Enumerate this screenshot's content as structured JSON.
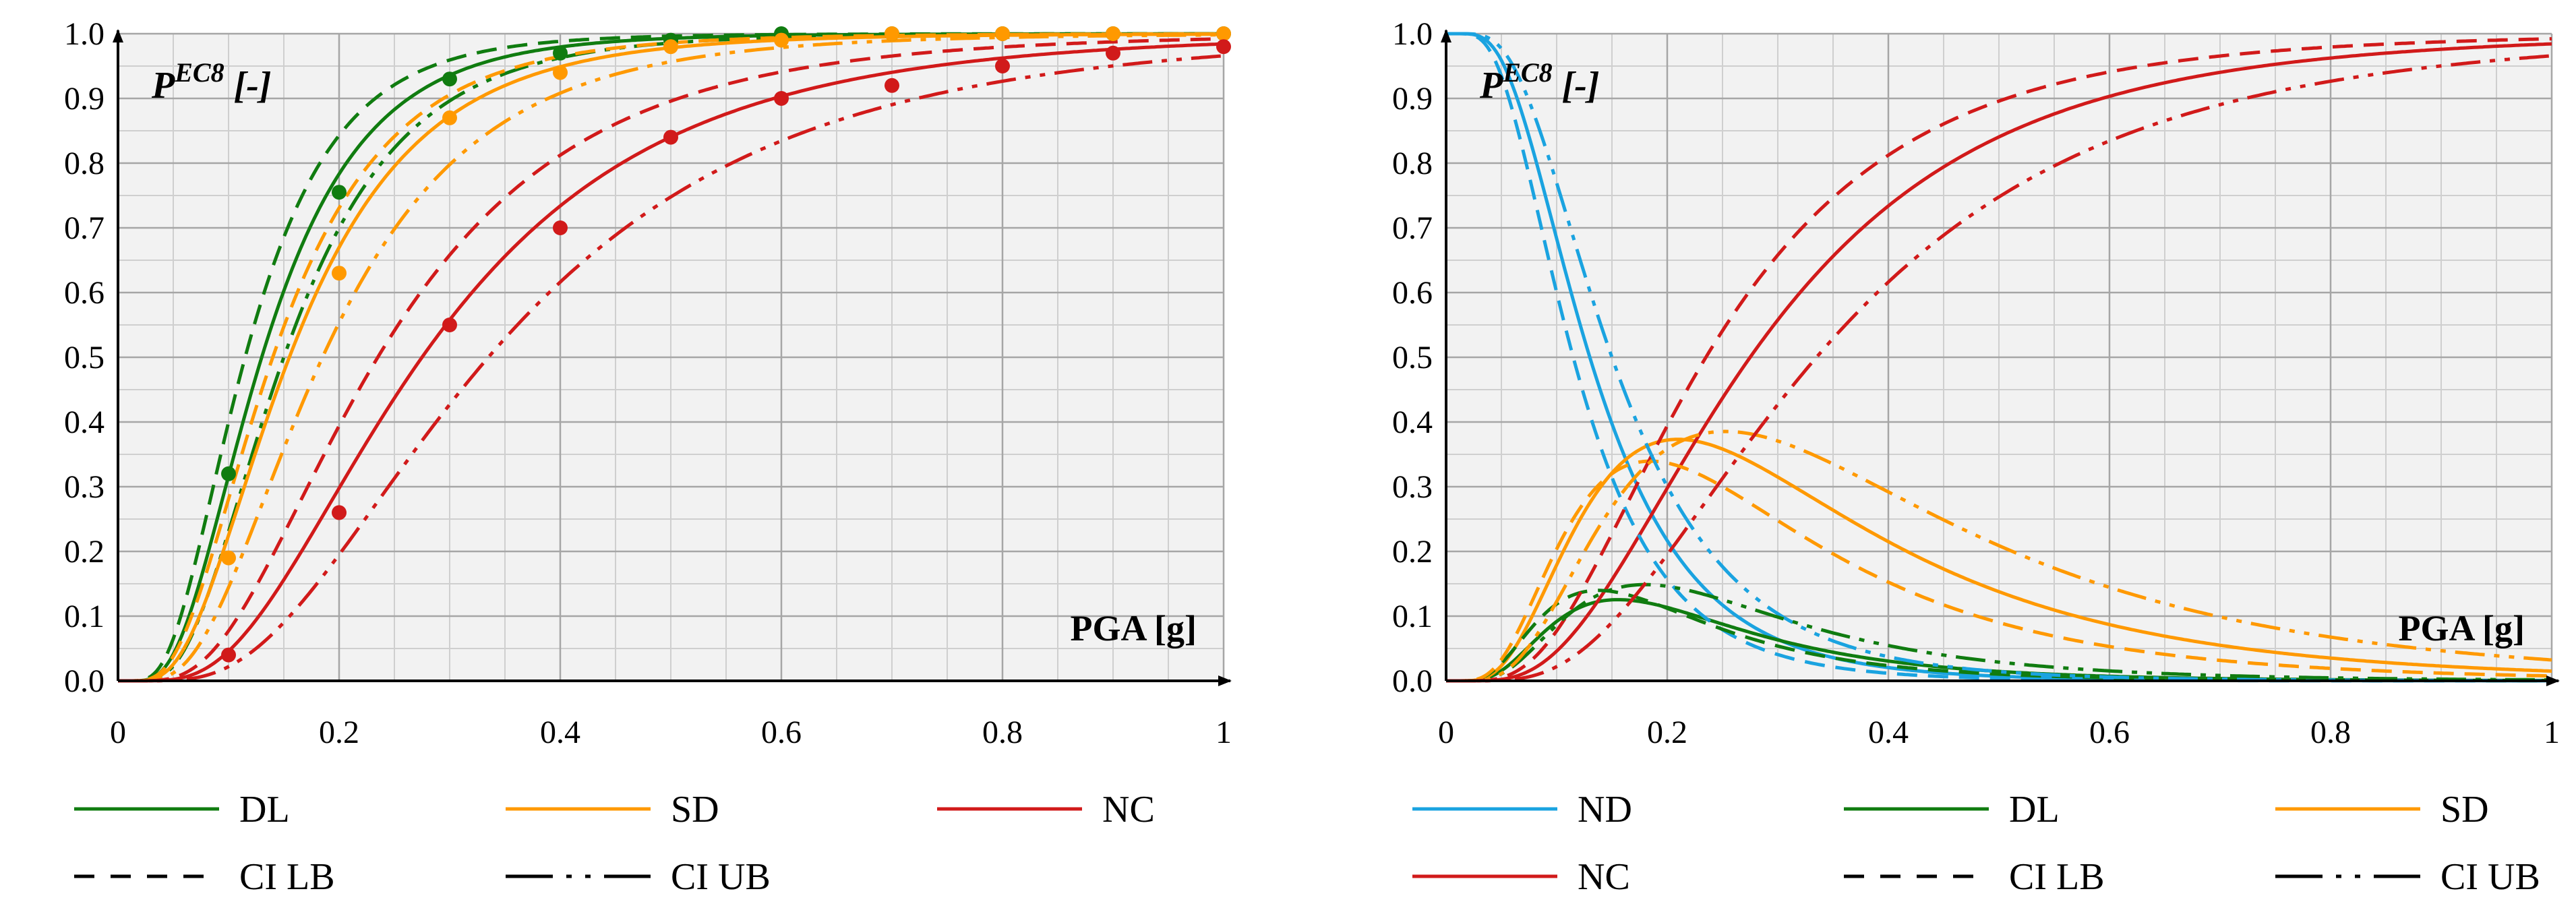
{
  "chart_data": [
    {
      "type": "line",
      "x_axis_label": "PGA [g]",
      "y_axis_label_main": "P",
      "y_axis_label_sup": "EC8",
      "y_axis_label_suffix": " [-]",
      "xlim": [
        0,
        1
      ],
      "ylim": [
        0,
        1
      ],
      "x_ticks": [
        "0",
        "0.2",
        "0.4",
        "0.6",
        "0.8",
        "1"
      ],
      "y_ticks": [
        "0.0",
        "0.1",
        "0.2",
        "0.3",
        "0.4",
        "0.5",
        "0.6",
        "0.7",
        "0.8",
        "0.9",
        "1.0"
      ],
      "grid": true,
      "kind": "fragility",
      "series": [
        {
          "name": "DL",
          "color": "#107c10",
          "median": 0.13,
          "beta": 0.55,
          "lb_median": 0.115,
          "ub_median": 0.15,
          "points": {
            "x": [
              0.1,
              0.2,
              0.3,
              0.4,
              0.5,
              0.6,
              0.7,
              0.8,
              0.9,
              1.0
            ],
            "y": [
              0.32,
              0.755,
              0.93,
              0.97,
              0.99,
              1.0,
              1.0,
              1.0,
              1.0,
              1.0
            ]
          }
        },
        {
          "name": "SD",
          "color": "#ff9900",
          "median": 0.155,
          "beta": 0.58,
          "lb_median": 0.14,
          "ub_median": 0.185,
          "points": {
            "x": [
              0.1,
              0.2,
              0.3,
              0.4,
              0.5,
              0.6,
              0.7,
              0.8,
              0.9,
              1.0
            ],
            "y": [
              0.19,
              0.63,
              0.87,
              0.94,
              0.98,
              0.99,
              1.0,
              1.0,
              1.0,
              1.0
            ]
          }
        },
        {
          "name": "NC",
          "color": "#d11a1a",
          "median": 0.275,
          "beta": 0.6,
          "lb_median": 0.235,
          "ub_median": 0.335,
          "points": {
            "x": [
              0.1,
              0.2,
              0.3,
              0.4,
              0.5,
              0.6,
              0.7,
              0.8,
              0.9,
              1.0
            ],
            "y": [
              0.04,
              0.26,
              0.55,
              0.7,
              0.84,
              0.9,
              0.92,
              0.95,
              0.97,
              0.98
            ]
          }
        }
      ],
      "legend": {
        "entries": [
          {
            "label": "DL",
            "style": "solid",
            "color": "#107c10"
          },
          {
            "label": "SD",
            "style": "solid",
            "color": "#ff9900"
          },
          {
            "label": "NC",
            "style": "solid",
            "color": "#d11a1a"
          },
          {
            "label": "CI LB",
            "style": "dash",
            "color": "#000000"
          },
          {
            "label": "CI UB",
            "style": "dashdotdot",
            "color": "#000000"
          }
        ]
      }
    },
    {
      "type": "line",
      "x_axis_label": "PGA [g]",
      "y_axis_label_main": "P",
      "y_axis_label_sup": "EC8",
      "y_axis_label_suffix": " [-]",
      "xlim": [
        0,
        1
      ],
      "ylim": [
        0,
        1
      ],
      "x_ticks": [
        "0",
        "0.2",
        "0.4",
        "0.6",
        "0.8",
        "1"
      ],
      "y_ticks": [
        "0.0",
        "0.1",
        "0.2",
        "0.3",
        "0.4",
        "0.5",
        "0.6",
        "0.7",
        "0.8",
        "0.9",
        "1.0"
      ],
      "grid": true,
      "kind": "damage-state-probability",
      "series": [
        {
          "name": "ND",
          "color": "#1aa3e0"
        },
        {
          "name": "DL",
          "color": "#107c10"
        },
        {
          "name": "SD",
          "color": "#ff9900"
        },
        {
          "name": "NC",
          "color": "#d11a1a"
        }
      ],
      "legend": {
        "entries": [
          {
            "label": "ND",
            "style": "solid",
            "color": "#1aa3e0"
          },
          {
            "label": "DL",
            "style": "solid",
            "color": "#107c10"
          },
          {
            "label": "SD",
            "style": "solid",
            "color": "#ff9900"
          },
          {
            "label": "NC",
            "style": "solid",
            "color": "#d11a1a"
          },
          {
            "label": "CI LB",
            "style": "dash",
            "color": "#000000"
          },
          {
            "label": "CI UB",
            "style": "dashdotdot",
            "color": "#000000"
          }
        ]
      }
    }
  ]
}
